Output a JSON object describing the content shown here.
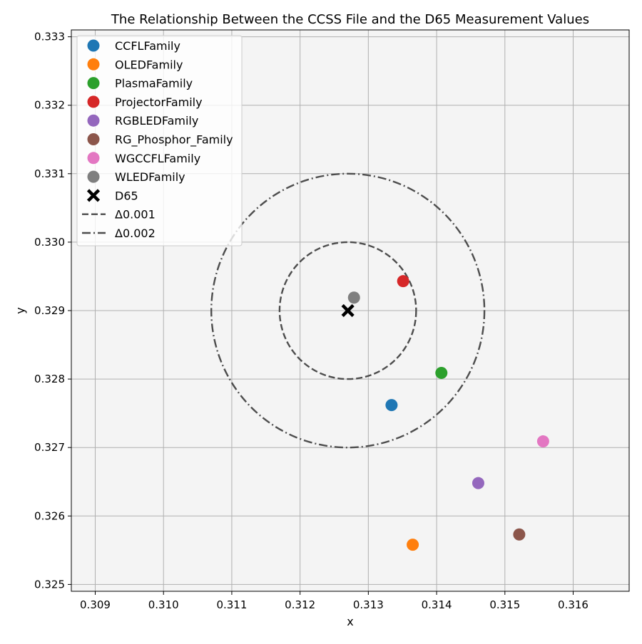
{
  "chart_data": {
    "type": "scatter",
    "title": "The Relationship Between the CCSS File and the D65 Measurement Values",
    "xlabel": "x",
    "ylabel": "y",
    "xlim": [
      0.30865,
      0.31682
    ],
    "ylim": [
      0.3249,
      0.3331
    ],
    "x_ticks": [
      "0.309",
      "0.310",
      "0.311",
      "0.312",
      "0.313",
      "0.314",
      "0.315",
      "0.316"
    ],
    "y_ticks": [
      "0.325",
      "0.326",
      "0.327",
      "0.328",
      "0.329",
      "0.330",
      "0.331",
      "0.332",
      "0.333"
    ],
    "grid": true,
    "legend_position": "top-left",
    "series": [
      {
        "name": "CCFLFamily",
        "color": "#1f77b4",
        "x": 0.31334,
        "y": 0.32762
      },
      {
        "name": "OLEDFamily",
        "color": "#ff7f0e",
        "x": 0.31365,
        "y": 0.32558
      },
      {
        "name": "PlasmaFamily",
        "color": "#2ca02c",
        "x": 0.31407,
        "y": 0.32809
      },
      {
        "name": "ProjectorFamily",
        "color": "#d62728",
        "x": 0.31351,
        "y": 0.32943
      },
      {
        "name": "RGBLEDFamily",
        "color": "#9467bd",
        "x": 0.31461,
        "y": 0.32648
      },
      {
        "name": "RG_Phosphor_Family",
        "color": "#8c564b",
        "x": 0.31521,
        "y": 0.32573
      },
      {
        "name": "WGCCFLFamily",
        "color": "#e377c2",
        "x": 0.31556,
        "y": 0.32709
      },
      {
        "name": "WLEDFamily",
        "color": "#7f7f7f",
        "x": 0.31279,
        "y": 0.32919
      }
    ],
    "reference_point": {
      "name": "D65",
      "x": 0.3127,
      "y": 0.329,
      "color": "#000000"
    },
    "circles": [
      {
        "name": "Δ0.001",
        "radius": 0.001,
        "style": "dashed",
        "color": "#4d4d4d"
      },
      {
        "name": "Δ0.002",
        "radius": 0.002,
        "style": "dash-dot",
        "color": "#4d4d4d"
      }
    ]
  }
}
